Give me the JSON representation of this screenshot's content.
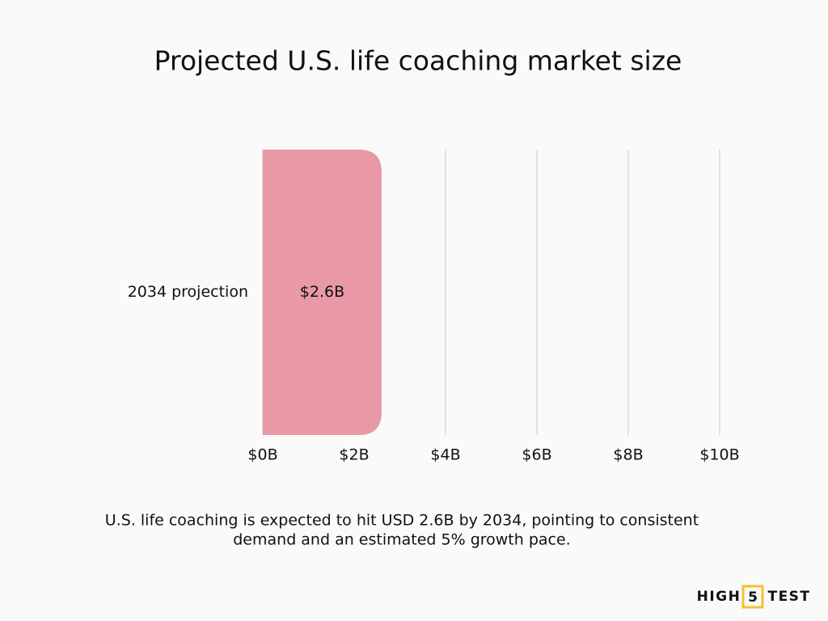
{
  "chart_data": {
    "type": "bar",
    "orientation": "horizontal",
    "title": "Projected U.S. life coaching market size",
    "categories": [
      "2034 projection"
    ],
    "values": [
      2.6
    ],
    "value_labels": [
      "$2.6B"
    ],
    "color": "#e899a5",
    "xlim": [
      0,
      10
    ],
    "xticks": [
      {
        "value": 0,
        "label": "$0B"
      },
      {
        "value": 2,
        "label": "$2B"
      },
      {
        "value": 4,
        "label": "$4B"
      },
      {
        "value": 6,
        "label": "$6B"
      },
      {
        "value": 8,
        "label": "$8B"
      },
      {
        "value": 10,
        "label": "$10B"
      }
    ],
    "grid": true
  },
  "caption": [
    "U.S. life coaching is expected to hit USD 2.6B by 2034, pointing to consistent",
    "demand and an estimated 5% growth pace."
  ],
  "brand": {
    "left": "HIGH",
    "mark": "5",
    "right": "TEST"
  }
}
